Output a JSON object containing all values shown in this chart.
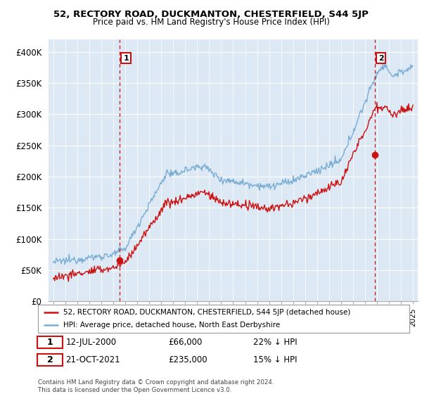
{
  "title": "52, RECTORY ROAD, DUCKMANTON, CHESTERFIELD, S44 5JP",
  "subtitle": "Price paid vs. HM Land Registry's House Price Index (HPI)",
  "background_color": "#ffffff",
  "plot_bg_color": "#dce9f5",
  "grid_color": "#ffffff",
  "ylim": [
    0,
    420000
  ],
  "yticks": [
    0,
    50000,
    100000,
    150000,
    200000,
    250000,
    300000,
    350000,
    400000
  ],
  "ytick_labels": [
    "£0",
    "£50K",
    "£100K",
    "£150K",
    "£200K",
    "£250K",
    "£300K",
    "£350K",
    "£400K"
  ],
  "hpi_color": "#7aadd4",
  "sale_color": "#cc1111",
  "vline_color": "#cc1111",
  "sale1_year": 2000.53,
  "sale1_price": 66000,
  "sale1_label": "1",
  "sale2_year": 2021.8,
  "sale2_price": 235000,
  "sale2_label": "2",
  "footer_text": "Contains HM Land Registry data © Crown copyright and database right 2024.\nThis data is licensed under the Open Government Licence v3.0.",
  "legend_line1": "52, RECTORY ROAD, DUCKMANTON, CHESTERFIELD, S44 5JP (detached house)",
  "legend_line2": "HPI: Average price, detached house, North East Derbyshire",
  "annotation1_date": "12-JUL-2000",
  "annotation1_price": "£66,000",
  "annotation1_hpi": "22% ↓ HPI",
  "annotation2_date": "21-OCT-2021",
  "annotation2_price": "£235,000",
  "annotation2_hpi": "15% ↓ HPI"
}
